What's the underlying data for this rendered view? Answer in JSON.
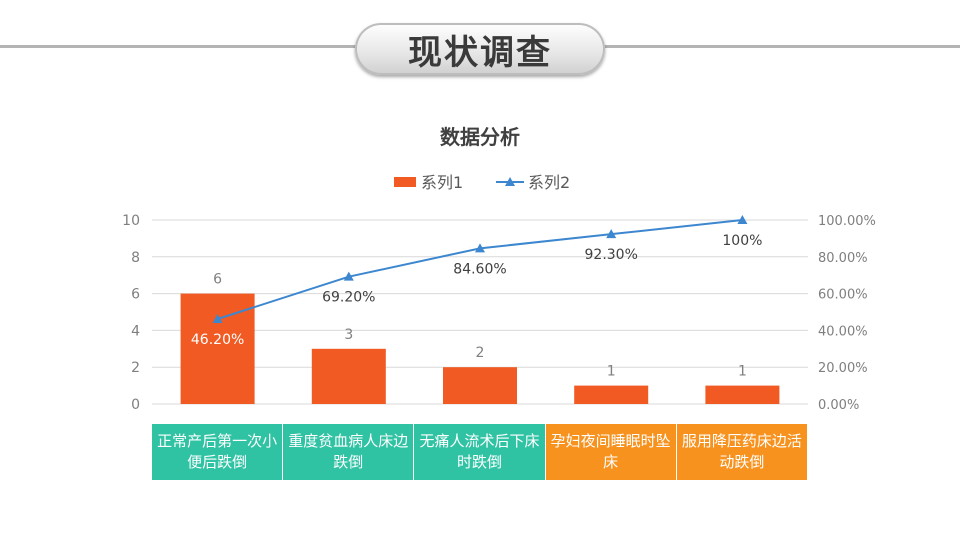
{
  "page": {
    "title": "现状调查"
  },
  "colors": {
    "bar": "#f15a22",
    "line": "#3c87cf",
    "category_teal": "#2fc3a4",
    "category_orange": "#f7921e",
    "axis_text": "#7f7f7f",
    "grid": "#d9d9d9"
  },
  "chart_data": {
    "type": "bar",
    "title": "数据分析",
    "legend_position": "top",
    "grid": true,
    "categories": [
      "正常产后第一次小便后跌倒",
      "重度贫血病人床边跌倒",
      "无痛人流术后下床时跌倒",
      "孕妇夜间睡眠时坠床",
      "服用降压药床边活动跌倒"
    ],
    "category_colors": [
      "teal",
      "teal",
      "teal",
      "orange",
      "orange"
    ],
    "ylim": [
      0,
      10
    ],
    "yticks": [
      "0",
      "2",
      "4",
      "6",
      "8",
      "10"
    ],
    "y2lim": [
      0,
      100
    ],
    "y2ticks": [
      "0.00%",
      "20.00%",
      "40.00%",
      "60.00%",
      "80.00%",
      "100.00%"
    ],
    "series": [
      {
        "name": "系列1",
        "type": "bar",
        "values": [
          6,
          3,
          2,
          1,
          1
        ],
        "labels": [
          "6",
          "3",
          "2",
          "1",
          "1"
        ]
      },
      {
        "name": "系列2",
        "type": "line",
        "axis": "secondary",
        "values": [
          46.2,
          69.2,
          84.6,
          92.3,
          100
        ],
        "labels": [
          "46.20%",
          "69.20%",
          "84.60%",
          "92.30%",
          "100%"
        ]
      }
    ]
  }
}
